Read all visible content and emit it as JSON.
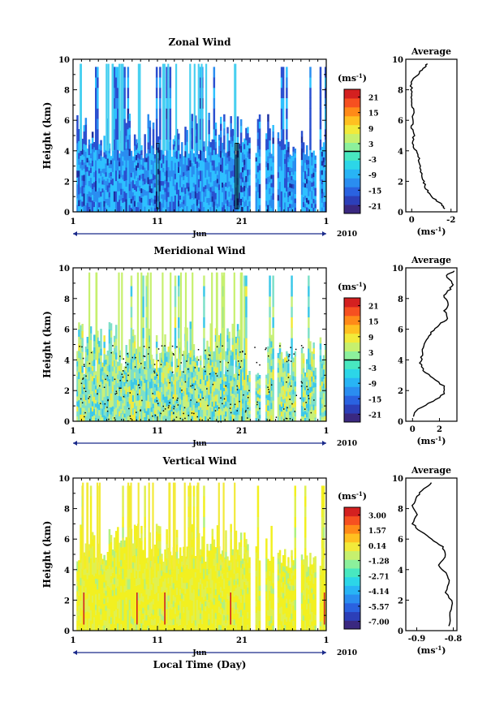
{
  "chart_data": [
    {
      "type": "heatmap",
      "title": "Zonal Wind",
      "ylabel": "Height (km)",
      "xlabel": "",
      "ylim": [
        0,
        10
      ],
      "yticks": [
        "0",
        "2",
        "4",
        "6",
        "8",
        "10"
      ],
      "xticks": [
        "1",
        "11",
        "21",
        "1"
      ],
      "month_label": "Jun",
      "year_label": "2010",
      "colorbar": {
        "unit_label": "(ms-1)",
        "ticks": [
          "21",
          "15",
          "9",
          "3",
          "-3",
          "-9",
          "-15",
          "-21"
        ],
        "range": [
          -24,
          24
        ]
      },
      "palette": {
        "warm": "#ff6a00",
        "neutral": "#2ec0ff",
        "cool": "#2a50d0"
      },
      "average_profile": {
        "title": "Average",
        "xlabel": "(ms-1)",
        "xticks": [
          "0",
          "-2"
        ],
        "xlim": [
          0.3,
          -2.3
        ],
        "profile": [
          [
            -1.7,
            0.2
          ],
          [
            -1.5,
            0.5
          ],
          [
            -1.2,
            0.8
          ],
          [
            -0.9,
            1.2
          ],
          [
            -0.7,
            1.6
          ],
          [
            -0.6,
            2.0
          ],
          [
            -0.5,
            2.5
          ],
          [
            -0.4,
            3.0
          ],
          [
            -0.35,
            3.5
          ],
          [
            -0.2,
            4.0
          ],
          [
            -0.05,
            4.5
          ],
          [
            -0.1,
            5.0
          ],
          [
            0.0,
            5.5
          ],
          [
            -0.05,
            6.0
          ],
          [
            -0.1,
            6.5
          ],
          [
            0.0,
            7.0
          ],
          [
            0.05,
            7.5
          ],
          [
            0.0,
            8.0
          ],
          [
            0.05,
            8.5
          ],
          [
            -0.3,
            9.0
          ],
          [
            -0.6,
            9.4
          ],
          [
            -0.8,
            9.7
          ]
        ]
      }
    },
    {
      "type": "heatmap",
      "title": "Meridional Wind",
      "ylabel": "Height (km)",
      "xlabel": "",
      "ylim": [
        0,
        10
      ],
      "yticks": [
        "0",
        "2",
        "4",
        "6",
        "8",
        "10"
      ],
      "xticks": [
        "1",
        "11",
        "21",
        "1"
      ],
      "month_label": "Jun",
      "year_label": "2010",
      "colorbar": {
        "unit_label": "(ms-1)",
        "ticks": [
          "21",
          "15",
          "9",
          "3",
          "-3",
          "-9",
          "-15",
          "-21"
        ],
        "range": [
          -24,
          24
        ]
      },
      "palette": {
        "warm": "#c8f07a",
        "neutral": "#7ee0c8",
        "cool": "#3cc8e8"
      },
      "average_profile": {
        "title": "Average",
        "xlabel": "(ms-1)",
        "xticks": [
          "0",
          "2"
        ],
        "xlim": [
          -0.5,
          3.3
        ],
        "profile": [
          [
            0.0,
            0.3
          ],
          [
            0.4,
            0.8
          ],
          [
            1.5,
            1.3
          ],
          [
            2.4,
            1.8
          ],
          [
            2.3,
            2.3
          ],
          [
            1.5,
            2.8
          ],
          [
            0.8,
            3.3
          ],
          [
            0.6,
            3.8
          ],
          [
            0.7,
            4.3
          ],
          [
            0.8,
            4.8
          ],
          [
            1.0,
            5.3
          ],
          [
            1.4,
            5.8
          ],
          [
            2.0,
            6.3
          ],
          [
            2.6,
            6.7
          ],
          [
            2.4,
            7.2
          ],
          [
            2.7,
            7.7
          ],
          [
            2.3,
            8.2
          ],
          [
            2.8,
            8.6
          ],
          [
            3.0,
            9.0
          ],
          [
            2.5,
            9.5
          ],
          [
            3.1,
            9.8
          ]
        ]
      }
    },
    {
      "type": "heatmap",
      "title": "Vertical Wind",
      "ylabel": "Height (km)",
      "xlabel": "Local Time (Day)",
      "ylim": [
        0,
        10
      ],
      "yticks": [
        "0",
        "2",
        "4",
        "6",
        "8",
        "10"
      ],
      "xticks": [
        "1",
        "11",
        "21",
        "1"
      ],
      "month_label": "Jun",
      "year_label": "2010",
      "colorbar": {
        "unit_label": "(ms-1)",
        "ticks": [
          "3.00",
          "1.57",
          "0.14",
          "-1.28",
          "-2.71",
          "-4.14",
          "-5.57",
          "-7.00"
        ],
        "range": [
          -7.7,
          3.7
        ]
      },
      "palette": {
        "warm": "#f2f020",
        "neutral": "#e0f050",
        "cool": "#b0f080"
      },
      "average_profile": {
        "title": "Average",
        "xlabel": "(ms-1)",
        "xticks": [
          "-0.9",
          "-0.8"
        ],
        "xlim": [
          -0.93,
          -0.79
        ],
        "profile": [
          [
            -0.81,
            0.3
          ],
          [
            -0.81,
            1.0
          ],
          [
            -0.8,
            1.8
          ],
          [
            -0.82,
            2.5
          ],
          [
            -0.81,
            3.3
          ],
          [
            -0.82,
            3.8
          ],
          [
            -0.84,
            4.3
          ],
          [
            -0.82,
            5.0
          ],
          [
            -0.83,
            5.5
          ],
          [
            -0.86,
            6.0
          ],
          [
            -0.89,
            6.5
          ],
          [
            -0.91,
            7.0
          ],
          [
            -0.9,
            7.6
          ],
          [
            -0.91,
            8.2
          ],
          [
            -0.9,
            8.8
          ],
          [
            -0.88,
            9.3
          ],
          [
            -0.86,
            9.7
          ]
        ]
      }
    }
  ]
}
